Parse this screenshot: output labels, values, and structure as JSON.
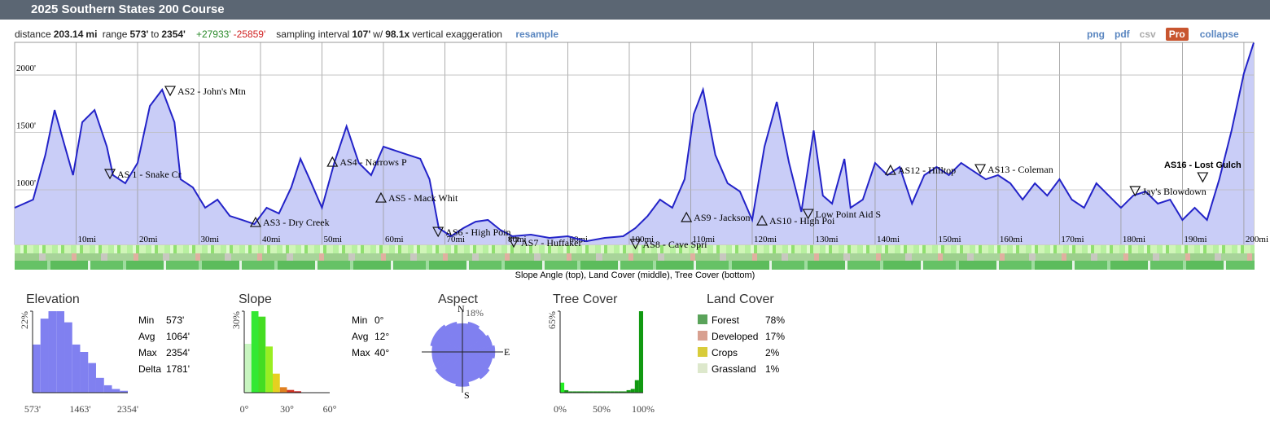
{
  "header": {
    "title": "2025 Southern States 200 Course"
  },
  "summary": {
    "distance_label": "distance",
    "distance": "203.14",
    "distance_unit": "mi",
    "range_label": "range",
    "range_min": "573'",
    "range_to": "to",
    "range_max": "2354'",
    "gain": "+27933'",
    "loss": "-25859'",
    "sampling_label": "sampling interval",
    "interval": "107'",
    "with": "w/",
    "exaggeration": "98.1x",
    "exaggeration_label": "vertical exaggeration",
    "resample": "resample"
  },
  "toolbar": {
    "png": "png",
    "pdf": "pdf",
    "csv": "csv",
    "pro": "Pro",
    "collapse": "collapse"
  },
  "strip_caption": "Slope Angle (top), Land Cover (middle), Tree Cover (bottom)",
  "chart_data": [
    {
      "type": "line",
      "color": "#2323c8",
      "fill_color": "#c9cdf7",
      "grid": true,
      "x": [
        0,
        3,
        5,
        6.5,
        8,
        9.5,
        11,
        13,
        15,
        16,
        18,
        20,
        22,
        24,
        26,
        27,
        29,
        31,
        33,
        35,
        37,
        39,
        41,
        43,
        45,
        46.5,
        48,
        50,
        52,
        54,
        56,
        58,
        60,
        62,
        64,
        66,
        67.5,
        69,
        71,
        73,
        75,
        77,
        79,
        81,
        84,
        87,
        90,
        93,
        96,
        99,
        101,
        103,
        105,
        107,
        109,
        110.5,
        112,
        114,
        116,
        118,
        120,
        122,
        124,
        126,
        128,
        130,
        131.5,
        133,
        135,
        136,
        138,
        140,
        142,
        144,
        146,
        148,
        150,
        152,
        154,
        156,
        158,
        160,
        162,
        164,
        166,
        168,
        170,
        172,
        174,
        176,
        178,
        180,
        182,
        184,
        186,
        188,
        190,
        192,
        194,
        196,
        198,
        200,
        201.6
      ],
      "values": [
        844,
        915,
        1305,
        1695,
        1411,
        1128,
        1589,
        1695,
        1376,
        1128,
        1057,
        1234,
        1730,
        1872,
        1589,
        1092,
        1021,
        844,
        915,
        773,
        738,
        702,
        844,
        794,
        1021,
        1270,
        1092,
        844,
        1234,
        1553,
        1234,
        1128,
        1376,
        1340,
        1305,
        1270,
        1092,
        667,
        596,
        667,
        723,
        738,
        652,
        596,
        610,
        582,
        596,
        553,
        582,
        596,
        667,
        773,
        915,
        844,
        1092,
        1660,
        1872,
        1305,
        1057,
        986,
        738,
        1376,
        1766,
        1234,
        809,
        1517,
        950,
        880,
        1270,
        844,
        915,
        1234,
        1128,
        1199,
        880,
        1128,
        1199,
        1128,
        1234,
        1163,
        1092,
        1128,
        1057,
        915,
        1057,
        950,
        1092,
        915,
        844,
        1057,
        950,
        844,
        950,
        986,
        880,
        915,
        738,
        844,
        738,
        1092,
        1517,
        2014,
        2280
      ],
      "xlim": [
        0,
        201.6
      ],
      "ylim": [
        525,
        2284
      ],
      "xticks": [
        {
          "value": 10,
          "label": "10mi"
        },
        {
          "value": 20,
          "label": "20mi"
        },
        {
          "value": 30,
          "label": "30mi"
        },
        {
          "value": 40,
          "label": "40mi"
        },
        {
          "value": 50,
          "label": "50mi"
        },
        {
          "value": 60,
          "label": "60mi"
        },
        {
          "value": 70,
          "label": "70mi"
        },
        {
          "value": 80,
          "label": "80mi"
        },
        {
          "value": 90,
          "label": "90mi"
        },
        {
          "value": 100,
          "label": "100mi"
        },
        {
          "value": 110,
          "label": "110mi"
        },
        {
          "value": 120,
          "label": "120mi"
        },
        {
          "value": 130,
          "label": "130mi"
        },
        {
          "value": 140,
          "label": "140mi"
        },
        {
          "value": 150,
          "label": "150mi"
        },
        {
          "value": 160,
          "label": "160mi"
        },
        {
          "value": 170,
          "label": "170mi"
        },
        {
          "value": 180,
          "label": "180mi"
        },
        {
          "value": 190,
          "label": "190mi"
        },
        {
          "value": 200,
          "label": "200mi"
        }
      ],
      "yticks": [
        {
          "value": 1000,
          "label": "1000'"
        },
        {
          "value": 1500,
          "label": "1500'"
        },
        {
          "value": 2000,
          "label": "2000'"
        }
      ],
      "annotations": [
        {
          "label": "AS 1 - Snake Cr",
          "x": 15.5,
          "y": 1135,
          "marker": "down"
        },
        {
          "label": "AS2 - John's Mtn",
          "x": 25.3,
          "y": 1858,
          "marker": "down"
        },
        {
          "label": "AS3 - Dry Creek",
          "x": 39.2,
          "y": 716,
          "marker": "up"
        },
        {
          "label": "AS4 - Narrows P",
          "x": 51.7,
          "y": 1241,
          "marker": "up"
        },
        {
          "label": "AS5 - Mack Whit",
          "x": 59.6,
          "y": 929,
          "marker": "up"
        },
        {
          "label": "AS6 - High Poin",
          "x": 68.9,
          "y": 631,
          "marker": "down"
        },
        {
          "label": "AS7 - Huffaker",
          "x": 81.2,
          "y": 539,
          "marker": "down"
        },
        {
          "label": "AS8 - Cave Spri",
          "x": 101,
          "y": 525,
          "marker": "down"
        },
        {
          "label": "AS9 - Jackson",
          "x": 109.3,
          "y": 759,
          "marker": "up"
        },
        {
          "label": "AS10 - High Poi",
          "x": 121.6,
          "y": 730,
          "marker": "up"
        },
        {
          "label": "Low Point Aid S",
          "x": 129.1,
          "y": 787,
          "marker": "down"
        },
        {
          "label": "AS12 - Hilltop",
          "x": 142.5,
          "y": 1170,
          "marker": "up"
        },
        {
          "label": "AS13 - Coleman",
          "x": 157.1,
          "y": 1177,
          "marker": "down"
        },
        {
          "label": "Jay's Blowdown",
          "x": 182.3,
          "y": 986,
          "marker": "down"
        },
        {
          "label": "AS16 - Lost Gulch",
          "x": 193.3,
          "y": 1106,
          "marker": "down",
          "label_position": "above"
        }
      ]
    },
    {
      "type": "histogram",
      "title": "Elevation",
      "color": "#8080f0",
      "bins": [
        573,
        721,
        870,
        1018,
        1167,
        1315,
        1463,
        1612,
        1760,
        1909,
        2057,
        2206,
        2354
      ],
      "values": [
        13,
        20,
        22,
        22,
        19,
        13,
        11,
        8,
        4,
        2,
        1,
        0.5
      ],
      "xlim": [
        573,
        2354
      ],
      "ylim": [
        0,
        22
      ],
      "xticks": [
        {
          "value": 573,
          "label": "573'"
        },
        {
          "value": 1463,
          "label": "1463'"
        },
        {
          "value": 2354,
          "label": "2354'"
        }
      ],
      "yticks": [
        {
          "value": 22,
          "label": "22%"
        }
      ],
      "stats": [
        {
          "label": "Min",
          "value": "573'"
        },
        {
          "label": "Avg",
          "value": "1064'"
        },
        {
          "label": "Max",
          "value": "2354'"
        },
        {
          "label": "Delta",
          "value": "1781'"
        }
      ]
    },
    {
      "type": "histogram",
      "title": "Slope",
      "bins": [
        0,
        5,
        10,
        15,
        20,
        25,
        30,
        35,
        40
      ],
      "values": [
        18,
        30,
        28,
        17,
        7,
        2,
        1,
        0.5
      ],
      "colors": [
        "#c8f5c0",
        "#33e833",
        "#44dd22",
        "#99ee22",
        "#e6d020",
        "#e08020",
        "#d03020",
        "#c01010"
      ],
      "xlim": [
        0,
        60
      ],
      "ylim": [
        0,
        30
      ],
      "xticks": [
        {
          "value": 0,
          "label": "0°"
        },
        {
          "value": 30,
          "label": "30°"
        },
        {
          "value": 60,
          "label": "60°"
        }
      ],
      "yticks": [
        {
          "value": 30,
          "label": "30%"
        }
      ],
      "stats": [
        {
          "label": "Min",
          "value": "0°"
        },
        {
          "label": "Avg",
          "value": "12°"
        },
        {
          "label": "Max",
          "value": "40°"
        }
      ]
    },
    {
      "type": "polar",
      "title": "Aspect",
      "color": "#8080f0",
      "categories": [
        "N",
        null,
        null,
        null,
        "E",
        null,
        null,
        null,
        "S",
        null,
        null,
        null,
        null,
        null,
        null,
        null
      ],
      "values": [
        14,
        15,
        14,
        15,
        16,
        15,
        16,
        15,
        17,
        16,
        16,
        15,
        15,
        16,
        16,
        15
      ],
      "rlim": [
        0,
        18
      ],
      "rticks": [
        {
          "value": 18,
          "label": "18%"
        }
      ]
    },
    {
      "type": "histogram",
      "title": "Tree Cover",
      "color": "#11aa11",
      "bins": [
        0,
        5,
        10,
        15,
        20,
        25,
        30,
        35,
        40,
        45,
        50,
        55,
        60,
        65,
        70,
        75,
        80,
        85,
        90,
        95,
        100
      ],
      "values": [
        8,
        2,
        1,
        1,
        1,
        1,
        1,
        1,
        1,
        1,
        1,
        1,
        1,
        1,
        1,
        1,
        2,
        3,
        10,
        65
      ],
      "colors": [
        "#22ee22",
        "#119911",
        "#119911",
        "#119911",
        "#119911",
        "#119911",
        "#119911",
        "#119911",
        "#119911",
        "#119911",
        "#119911",
        "#119911",
        "#119911",
        "#119911",
        "#119911",
        "#119911",
        "#119911",
        "#119911",
        "#119911",
        "#119911"
      ],
      "xlim": [
        0,
        100
      ],
      "ylim": [
        0,
        65
      ],
      "xticks": [
        {
          "value": 0,
          "label": "0%"
        },
        {
          "value": 50,
          "label": "50%"
        },
        {
          "value": 100,
          "label": "100%"
        }
      ],
      "yticks": [
        {
          "value": 65,
          "label": "65%"
        }
      ]
    }
  ],
  "land_cover": {
    "title": "Land Cover",
    "items": [
      {
        "name": "Forest",
        "share": "78%",
        "color": "#5aa35a"
      },
      {
        "name": "Developed",
        "share": "17%",
        "color": "#d8a090"
      },
      {
        "name": "Crops",
        "share": "2%",
        "color": "#d8cc3a"
      },
      {
        "name": "Grassland",
        "share": "1%",
        "color": "#dde8cc"
      }
    ]
  }
}
